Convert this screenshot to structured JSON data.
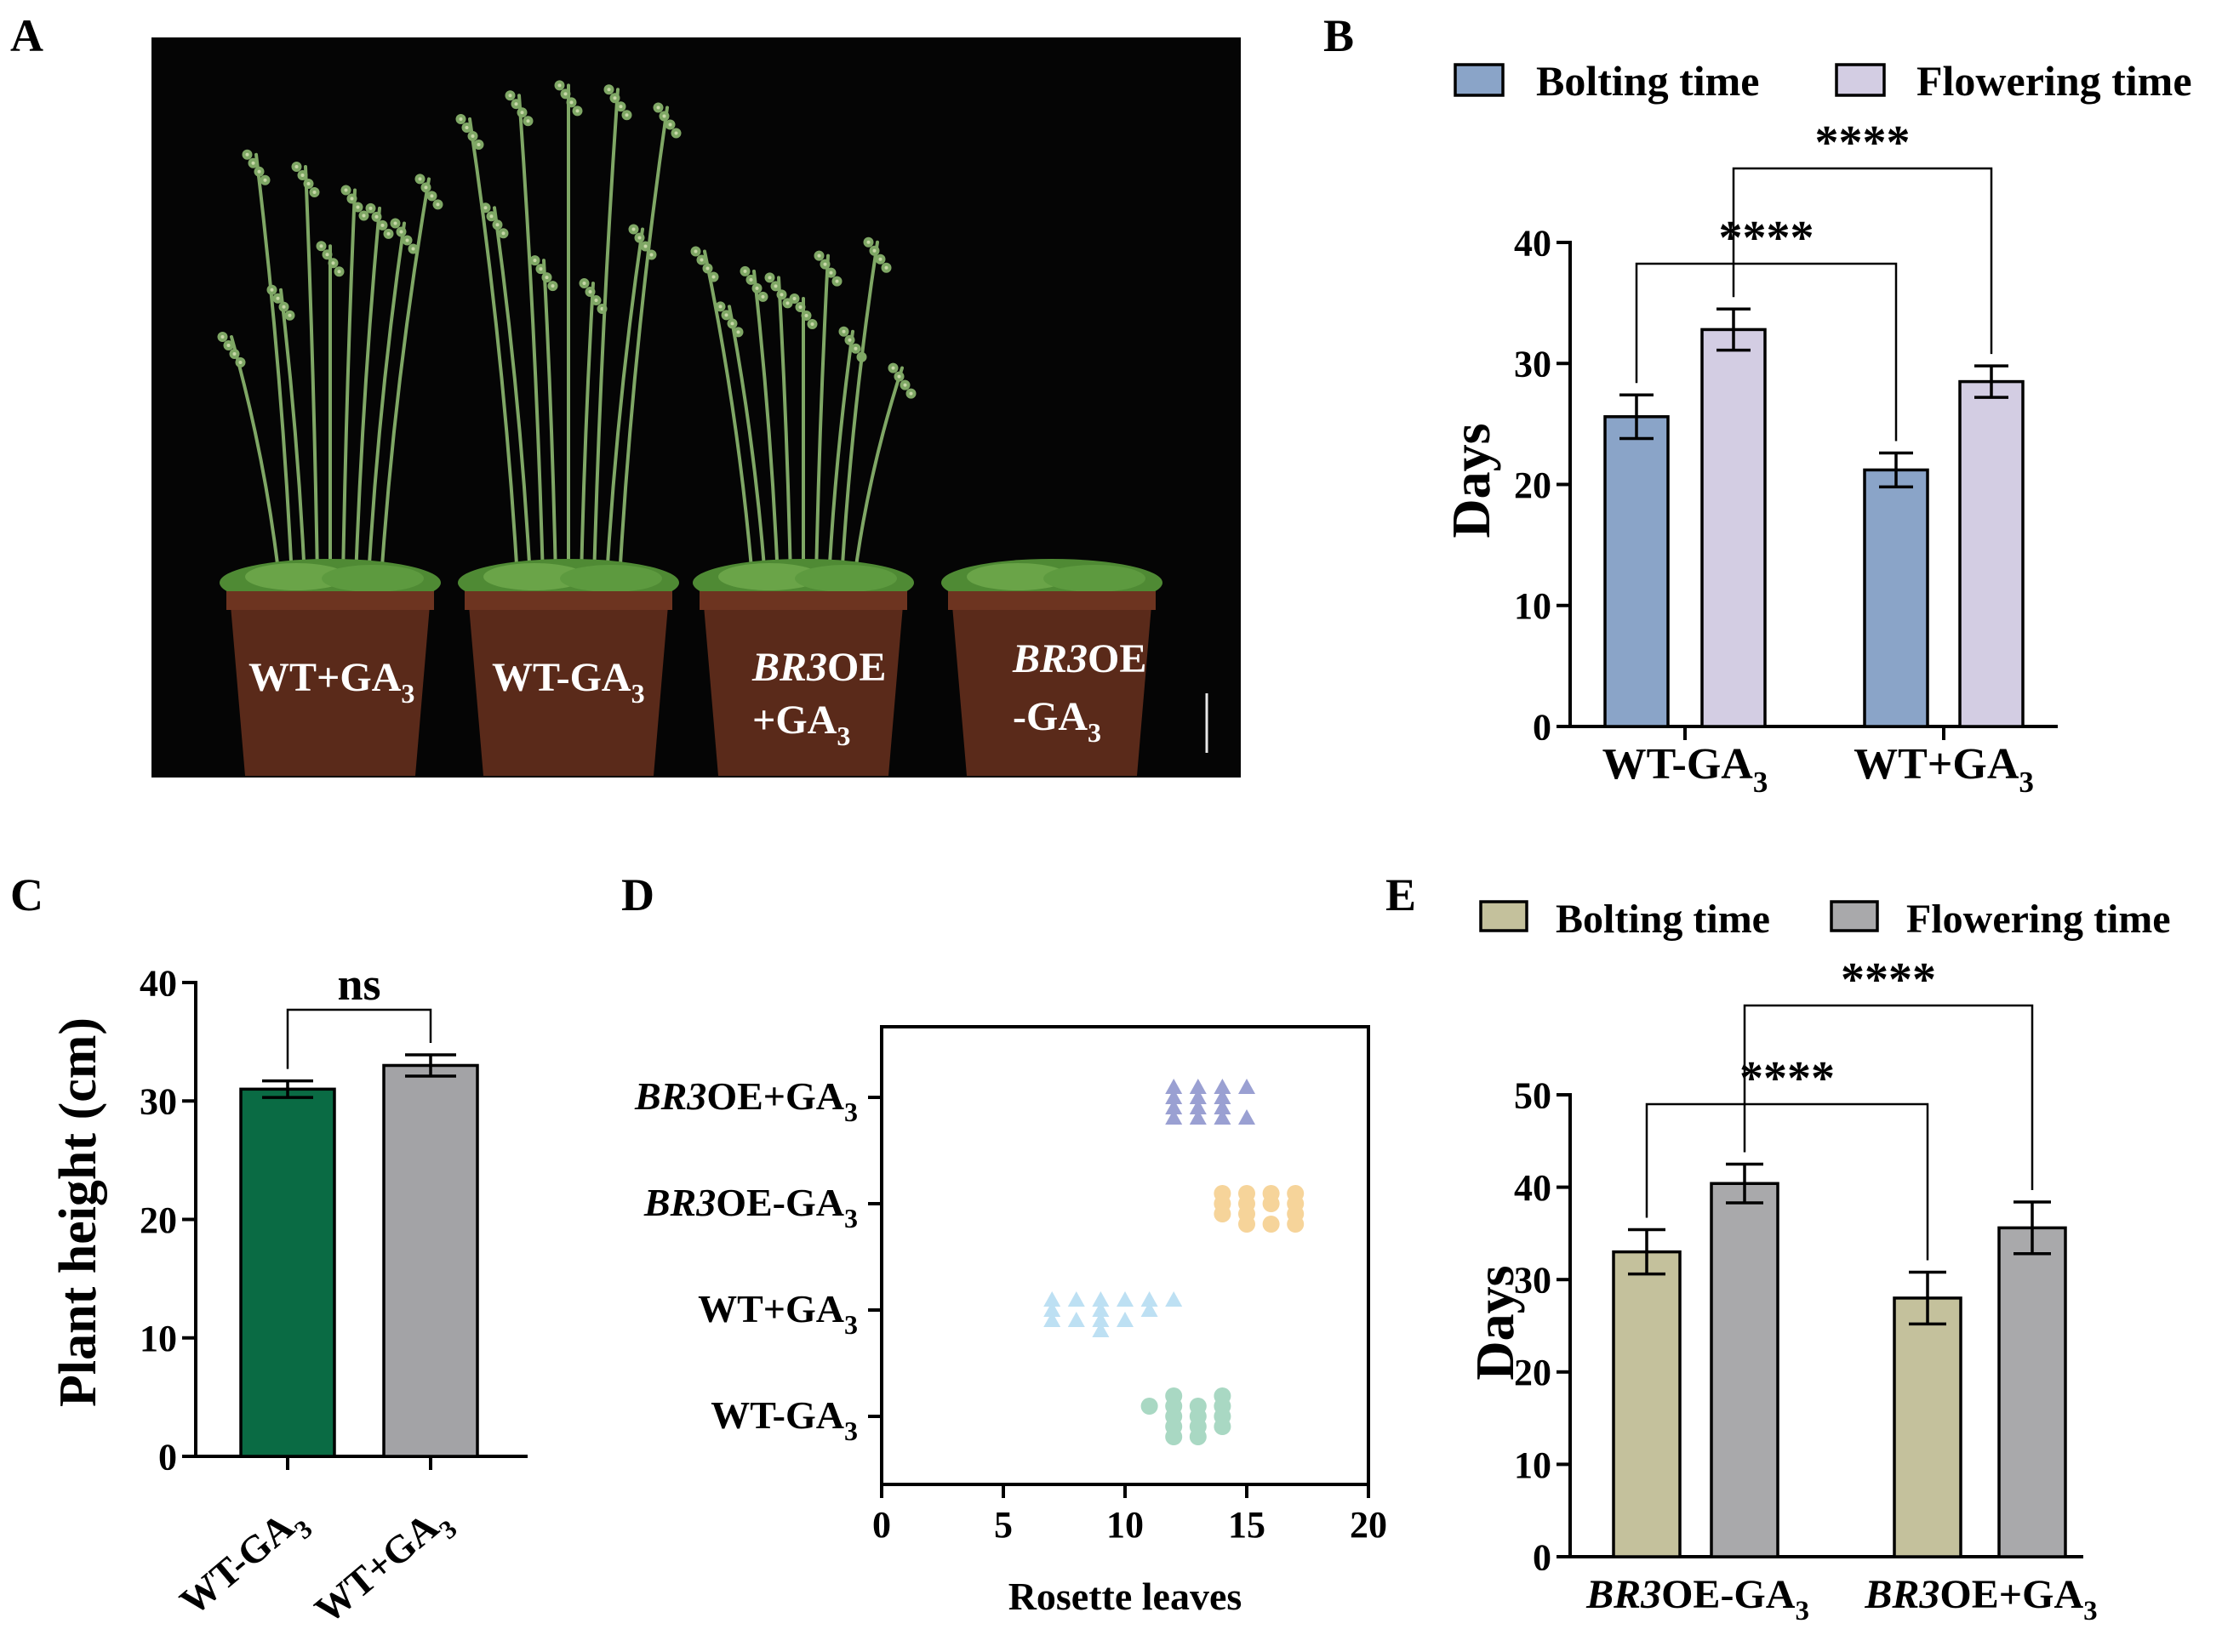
{
  "panels": {
    "A": {
      "letter": "A",
      "pot_labels": [
        {
          "main": "WT+GA",
          "sub": "3"
        },
        {
          "main": "WT-GA",
          "sub": "3"
        },
        {
          "italic": "BR3",
          "main": "OE",
          "line2": "+GA",
          "sub": "3"
        },
        {
          "italic": "BR3",
          "main": "OE",
          "line2": "-GA",
          "sub": "3"
        }
      ]
    },
    "B": {
      "letter": "B"
    },
    "C": {
      "letter": "C"
    },
    "D": {
      "letter": "D"
    },
    "E": {
      "letter": "E"
    }
  },
  "colors": {
    "bolting_B": "#8aa4c8",
    "flowering_B": "#d3cde3",
    "bar_C1": "#0a6b44",
    "bar_C2": "#a3a3a6",
    "bolting_E": "#c4c19c",
    "flowering_E": "#a9a9ab",
    "dots_BR3OE_plus": "#9aa0d2",
    "dots_BR3OE_minus": "#f6d49a",
    "dots_WT_plus": "#bde0f3",
    "dots_WT_minus": "#a9d8c3"
  },
  "chart_data": [
    {
      "panel": "B",
      "type": "bar",
      "categories": [
        {
          "main": "WT-GA",
          "sub": "3"
        },
        {
          "main": "WT+GA",
          "sub": "3"
        }
      ],
      "series": [
        {
          "name": "Bolting time",
          "values": [
            25.6,
            21.2
          ],
          "errors": [
            1.8,
            1.4
          ]
        },
        {
          "name": "Flowering time",
          "values": [
            32.8,
            28.5
          ],
          "errors": [
            1.7,
            1.3
          ]
        }
      ],
      "ylabel": "Days",
      "ylim": [
        0,
        40
      ],
      "yticks": [
        "0",
        "10",
        "20",
        "30",
        "40"
      ],
      "legend": "top",
      "significance": [
        "****",
        "****"
      ]
    },
    {
      "panel": "C",
      "type": "bar",
      "categories": [
        {
          "main": "WT-GA",
          "sub": "3"
        },
        {
          "main": "WT+GA",
          "sub": "3"
        }
      ],
      "values": [
        31.0,
        33.0
      ],
      "errors": [
        0.7,
        0.9
      ],
      "ylabel": "Plant height (cm)",
      "ylim": [
        0,
        40
      ],
      "yticks": [
        "0",
        "10",
        "20",
        "30",
        "40"
      ],
      "significance": [
        "ns"
      ]
    },
    {
      "panel": "D",
      "type": "scatter",
      "xlabel": "Rosette leaves",
      "xlim": [
        0,
        20
      ],
      "xticks": [
        "0",
        "5",
        "10",
        "15",
        "20"
      ],
      "groups": [
        {
          "label_italic": "BR3",
          "label_main": "OE+GA",
          "sub": "3",
          "marker": "triangle",
          "points": [
            [
              12,
              28
            ],
            [
              13,
              28
            ],
            [
              14,
              28
            ],
            [
              15,
              28
            ],
            [
              12,
              31
            ],
            [
              13,
              31
            ],
            [
              14,
              31
            ],
            [
              12,
              34
            ],
            [
              13,
              34
            ],
            [
              14,
              34
            ],
            [
              12,
              37
            ],
            [
              13,
              37
            ],
            [
              14,
              37
            ],
            [
              15,
              37
            ]
          ]
        },
        {
          "label_italic": "BR3",
          "label_main": "OE-GA",
          "sub": "3",
          "marker": "circle",
          "points": [
            [
              14,
              28
            ],
            [
              15,
              28
            ],
            [
              16,
              28
            ],
            [
              17,
              28
            ],
            [
              14,
              31
            ],
            [
              15,
              31
            ],
            [
              16,
              31
            ],
            [
              17,
              31
            ],
            [
              14,
              34
            ],
            [
              15,
              34
            ],
            [
              17,
              34
            ],
            [
              15,
              37
            ],
            [
              16,
              37
            ],
            [
              17,
              37
            ]
          ]
        },
        {
          "label_main": "WT+GA",
          "sub": "3",
          "marker": "triangle",
          "points": [
            [
              7,
              28
            ],
            [
              8,
              28
            ],
            [
              9,
              28
            ],
            [
              10,
              28
            ],
            [
              11,
              28
            ],
            [
              12,
              28
            ],
            [
              7,
              31
            ],
            [
              9,
              31
            ],
            [
              11,
              31
            ],
            [
              7,
              34
            ],
            [
              8,
              34
            ],
            [
              9,
              34
            ],
            [
              10,
              34
            ],
            [
              9,
              37
            ]
          ]
        },
        {
          "label_main": "WT-GA",
          "sub": "3",
          "marker": "circle",
          "points": [
            [
              11,
              28
            ],
            [
              12,
              28
            ],
            [
              13,
              28
            ],
            [
              14,
              28
            ],
            [
              12,
              31
            ],
            [
              13,
              31
            ],
            [
              14,
              31
            ],
            [
              12,
              34
            ],
            [
              13,
              34
            ],
            [
              14,
              34
            ],
            [
              12,
              25
            ],
            [
              14,
              25
            ],
            [
              12,
              37
            ],
            [
              13,
              37
            ]
          ]
        }
      ]
    },
    {
      "panel": "E",
      "type": "bar",
      "categories": [
        {
          "italic": "BR3",
          "main": "OE-GA",
          "sub": "3"
        },
        {
          "italic": "BR3",
          "main": "OE+GA",
          "sub": "3"
        }
      ],
      "series": [
        {
          "name": "Bolting time",
          "values": [
            33.0,
            28.0
          ],
          "errors": [
            2.4,
            2.8
          ]
        },
        {
          "name": "Flowering time",
          "values": [
            40.4,
            35.6
          ],
          "errors": [
            2.1,
            2.8
          ]
        }
      ],
      "ylabel": "Days",
      "ylim": [
        0,
        50
      ],
      "yticks": [
        "0",
        "10",
        "20",
        "30",
        "40",
        "50"
      ],
      "legend": "top",
      "significance": [
        "****",
        "****"
      ]
    }
  ]
}
